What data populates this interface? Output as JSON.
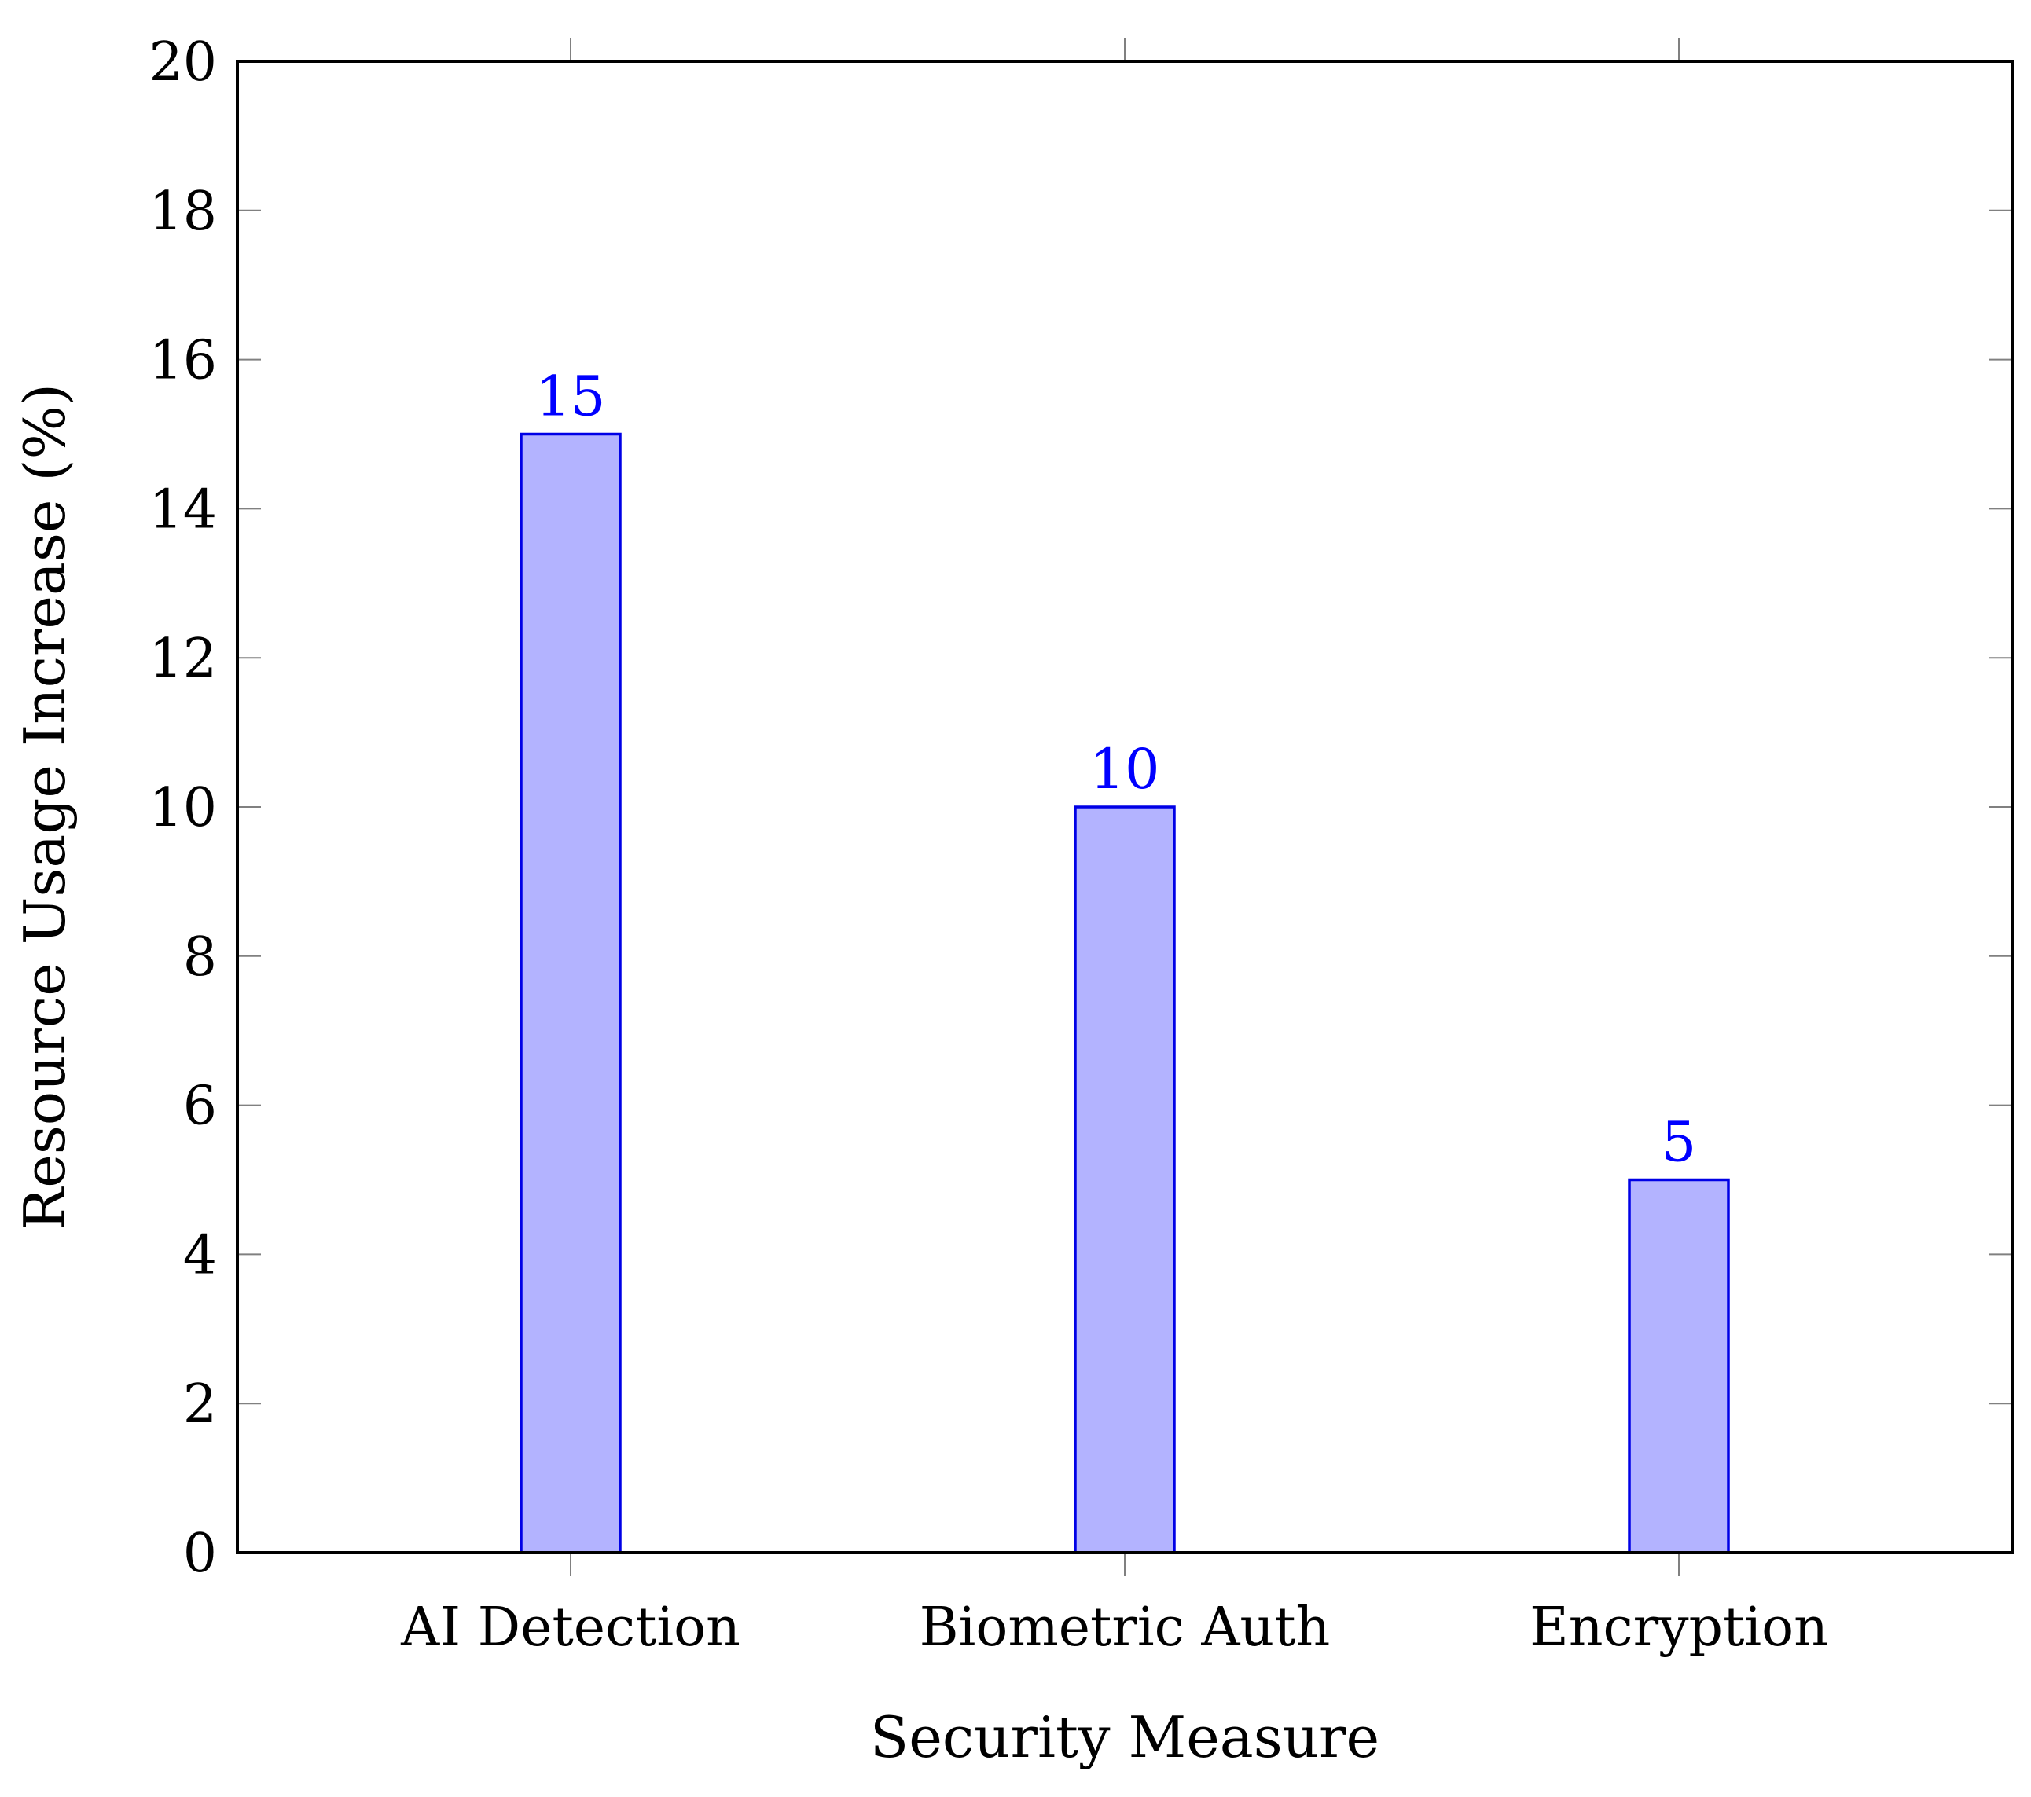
{
  "chart_data": {
    "type": "bar",
    "categories": [
      "AI Detection",
      "Biometric Auth",
      "Encryption"
    ],
    "values": [
      15,
      10,
      5
    ],
    "data_labels": [
      "15",
      "10",
      "5"
    ],
    "title": "",
    "xlabel": "Security Measure",
    "ylabel": "Resource Usage Increase (%)",
    "ylim": [
      0,
      20
    ],
    "yticks": [
      0,
      2,
      4,
      6,
      8,
      10,
      12,
      14,
      16,
      18,
      20
    ],
    "ytick_labels": [
      "0",
      "2",
      "4",
      "6",
      "8",
      "10",
      "12",
      "14",
      "16",
      "18",
      "20"
    ],
    "grid": false,
    "legend": "none",
    "colors": {
      "bar_fill": "#b3b3ff",
      "bar_stroke": "#0000e6",
      "data_label": "#0000ff",
      "axis": "#000000",
      "tick": "#808080"
    }
  }
}
